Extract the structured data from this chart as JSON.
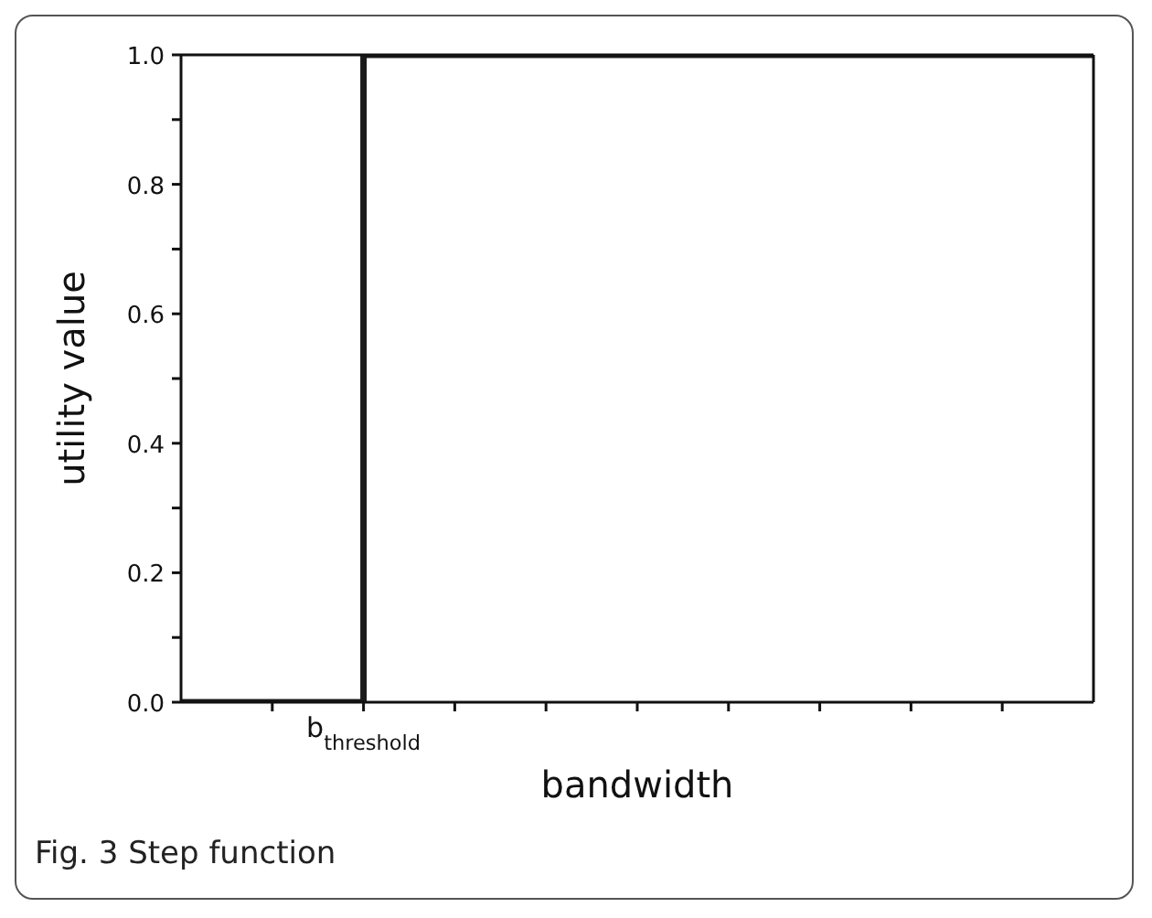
{
  "chart_data": {
    "type": "step",
    "xlabel": "bandwidth",
    "ylabel": "utility value",
    "annotations": [
      "b$_{threshold}$",
      "Fig. 3 Step function"
    ],
    "categories": [
      null,
      null,
      null,
      null,
      null,
      null
    ],
    "series": [
      {
        "color": "#1a1a1a",
        "values": [
          0,
          1,
          1,
          1,
          1,
          1
        ]
      }
    ],
    "ylim": [
      0,
      1
    ],
    "yticks": [
      {
        "value": 0,
        "label": "0.0"
      },
      {
        "value": 0.1,
        "label": null
      },
      {
        "value": 0.2,
        "label": "0.2"
      },
      {
        "value": 0.3,
        "label": null
      },
      {
        "value": 0.4,
        "label": "0.4"
      },
      {
        "value": 0.5,
        "label": null
      },
      {
        "value": 0.6,
        "label": "0.6"
      },
      {
        "value": 0.7,
        "label": null
      },
      {
        "value": 0.8,
        "label": "0.8"
      },
      {
        "value": 0.9,
        "label": null
      },
      {
        "value": 1,
        "label": "1.0"
      }
    ],
    "grid": false,
    "legend": false,
    "marker": "none",
    "line_style": "solid"
  }
}
